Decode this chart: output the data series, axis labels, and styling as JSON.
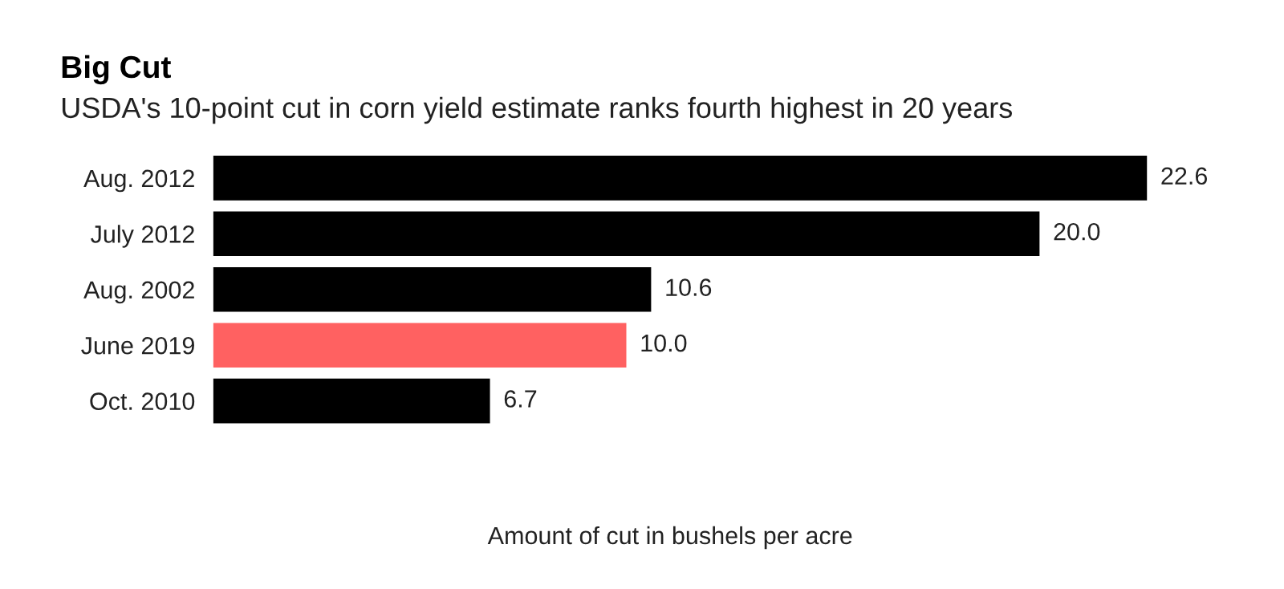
{
  "chart_data": {
    "type": "bar",
    "orientation": "horizontal",
    "title": "Big Cut",
    "subtitle": "USDA's 10-point cut in corn yield estimate ranks fourth highest in 20 years",
    "xlabel": "Amount of cut in bushels per acre",
    "categories": [
      "Aug. 2012",
      "July 2012",
      "Aug. 2002",
      "June 2019",
      "Oct. 2010"
    ],
    "values": [
      22.6,
      20.0,
      10.6,
      10.0,
      6.7
    ],
    "value_labels": [
      "22.6",
      "20.0",
      "10.6",
      "10.0",
      "6.7"
    ],
    "colors": [
      "#000000",
      "#000000",
      "#000000",
      "#ff6161",
      "#000000"
    ],
    "grid": false,
    "legend": false
  }
}
